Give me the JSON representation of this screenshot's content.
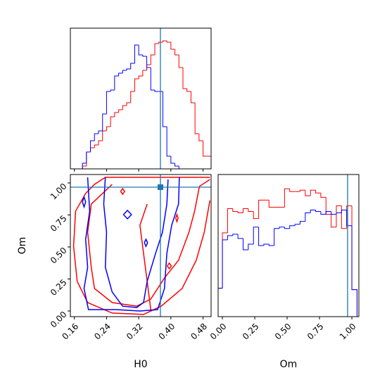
{
  "chart_data": [
    {
      "type": "histogram",
      "bins": [
        0.17,
        0.18,
        0.19,
        0.2,
        0.21,
        0.22,
        0.23,
        0.24,
        0.25,
        0.26,
        0.27,
        0.28,
        0.29,
        0.3,
        0.31,
        0.32,
        0.33,
        0.34,
        0.35,
        0.36,
        0.37,
        0.38,
        0.39,
        0.4,
        0.41,
        0.42,
        0.43,
        0.44,
        0.45,
        0.46,
        0.47,
        0.48,
        0.49,
        0.5
      ],
      "series": [
        {
          "color": "red",
          "values": [
            0,
            2,
            12,
            15,
            17,
            20,
            27,
            30,
            37,
            40,
            42,
            45,
            47,
            55,
            64,
            66,
            70,
            74,
            81,
            89,
            90,
            91,
            90,
            85,
            81,
            72,
            57,
            55,
            47,
            25,
            20,
            9,
            9
          ]
        },
        {
          "color": "blue",
          "values": [
            0,
            4,
            12,
            20,
            25,
            27,
            39,
            55,
            56,
            66,
            68,
            70,
            71,
            75,
            88,
            81,
            80,
            72,
            56,
            55,
            55,
            30,
            9,
            4,
            2,
            0,
            0,
            0,
            0,
            0,
            0,
            0,
            0
          ]
        }
      ],
      "xlim": [
        0.15,
        0.5
      ],
      "ylim": [
        0,
        100
      ],
      "xticks": [
        0.16,
        0.24,
        0.32,
        0.4,
        0.48
      ],
      "truth": 0.374,
      "truth_color": "#1f77b4"
    },
    {
      "type": "contour",
      "xlabel": "H0",
      "ylabel": "Om",
      "xlim": [
        0.15,
        0.5
      ],
      "ylim": [
        -0.044,
        1.066
      ],
      "xticks": [
        0.16,
        0.24,
        0.32,
        {
          "value": 0.4,
          "label": "0.40"
        },
        0.48
      ],
      "yticks": [
        {
          "value": 0,
          "label": "0.00"
        },
        0.25,
        {
          "value": 0.5,
          "label": "0.50"
        },
        0.75,
        {
          "value": 1,
          "label": "1.00"
        }
      ],
      "series": [
        {
          "color": "red",
          "lines": [
            {
              "x": [
                0.497,
                0.237,
                0.21,
                0.188,
                0.163,
                0.158,
                0.167,
                0.193,
                0.254,
                0.332,
                0.376,
                0.428,
                0.463,
                0.483,
                0.497
              ],
              "y": [
                1.044,
                1.044,
                0.989,
                0.918,
                0.78,
                0.506,
                0.231,
                0.066,
                -0.016,
                -0.027,
                0.038,
                0.176,
                0.396,
                0.615,
                0.863
              ]
            },
            {
              "x": [
                0.254,
                0.202,
                0.193,
                0.202,
                0.21,
                0.254,
                0.315,
                0.35,
                0.384,
                0.419,
                0.445,
                0.459,
                0.471,
                0.497
              ],
              "y": [
                0.989,
                0.835,
                0.615,
                0.341,
                0.176,
                0.066,
                0.038,
                0.093,
                0.258,
                0.396,
                0.615,
                0.78,
                0.973,
                1.027
              ]
            },
            {
              "x": [
                0.341,
                0.323,
                0.332,
                0.341,
                0.35
              ],
              "y": [
                0.835,
                0.67,
                0.451,
                0.231,
                0.011
              ]
            },
            {
              "x": [
                0.275,
                0.28,
                0.285,
                0.28,
                0.275
              ],
              "y": [
                0.934,
                0.956,
                0.934,
                0.912,
                0.934
              ]
            },
            {
              "x": [
                0.391,
                0.396,
                0.401,
                0.396,
                0.391
              ],
              "y": [
                0.352,
                0.374,
                0.352,
                0.33,
                0.352
              ]
            },
            {
              "x": [
                0.412,
                0.415,
                0.418,
                0.415,
                0.412
              ],
              "y": [
                0.725,
                0.753,
                0.725,
                0.698,
                0.725
              ]
            }
          ]
        },
        {
          "color": "blue",
          "lines": [
            {
              "x": [
                0.193,
                0.198,
                0.188,
                0.193,
                0.184,
                0.195,
                0.263,
                0.323,
                0.367,
                0.384,
                0.39,
                0.402,
                0.419,
                0.421
              ],
              "y": [
                1.044,
                0.78,
                0.56,
                0.341,
                0.176,
                0.011,
                0.011,
                0.0,
                0.011,
                0.176,
                0.451,
                0.67,
                0.835,
                1.044
              ]
            },
            {
              "x": [
                0.237,
                0.233,
                0.24,
                0.237,
                0.254,
                0.28,
                0.315,
                0.332,
                0.341,
                0.362,
                0.379,
                0.39,
                0.393
              ],
              "y": [
                1.044,
                0.835,
                0.615,
                0.341,
                0.148,
                0.038,
                0.027,
                0.066,
                0.231,
                0.451,
                0.615,
                0.835,
                1.027
              ]
            },
            {
              "x": [
                0.282,
                0.292,
                0.302,
                0.292,
                0.282
              ],
              "y": [
                0.753,
                0.786,
                0.753,
                0.72,
                0.753
              ]
            },
            {
              "x": [
                0.18,
                0.184,
                0.188,
                0.184,
                0.18
              ],
              "y": [
                0.852,
                0.89,
                0.852,
                0.813,
                0.852
              ]
            },
            {
              "x": [
                0.334,
                0.338,
                0.342,
                0.338,
                0.334
              ],
              "y": [
                0.533,
                0.56,
                0.533,
                0.505,
                0.533
              ]
            }
          ]
        }
      ],
      "truth": [
        0.374,
        0.967
      ],
      "truth_color": "#1f77b4"
    },
    {
      "type": "histogram",
      "xlabel": "Om",
      "bins": [
        -0.04,
        0,
        0.04,
        0.08,
        0.12,
        0.16,
        0.2,
        0.24,
        0.28,
        0.32,
        0.36,
        0.4,
        0.44,
        0.48,
        0.52,
        0.56,
        0.6,
        0.64,
        0.68,
        0.72,
        0.76,
        0.8,
        0.84,
        0.88,
        0.92,
        0.96,
        1,
        1.04
      ],
      "series": [
        {
          "color": "red",
          "values": [
            20,
            59,
            76,
            74,
            73,
            76,
            74,
            69,
            82,
            82,
            77,
            77,
            77,
            90,
            88,
            88,
            89,
            85,
            89,
            87,
            84,
            72,
            63,
            78,
            62,
            78,
            19
          ]
        },
        {
          "color": "blue",
          "values": [
            20,
            54,
            57,
            58,
            55,
            47,
            51,
            63,
            50,
            51,
            50,
            62,
            63,
            62,
            64,
            65,
            67,
            73,
            75,
            74,
            72,
            74,
            72,
            73,
            75,
            64,
            19
          ]
        }
      ],
      "xlim": [
        -0.033,
        1.054
      ],
      "ylim": [
        0,
        100
      ],
      "xticks": [
        {
          "value": 0,
          "label": "0.00"
        },
        0.25,
        {
          "value": 0.5,
          "label": "0.50"
        },
        0.75,
        {
          "value": 1,
          "label": "1.00"
        }
      ],
      "truth": 0.967,
      "truth_color": "#1f77b4"
    }
  ]
}
